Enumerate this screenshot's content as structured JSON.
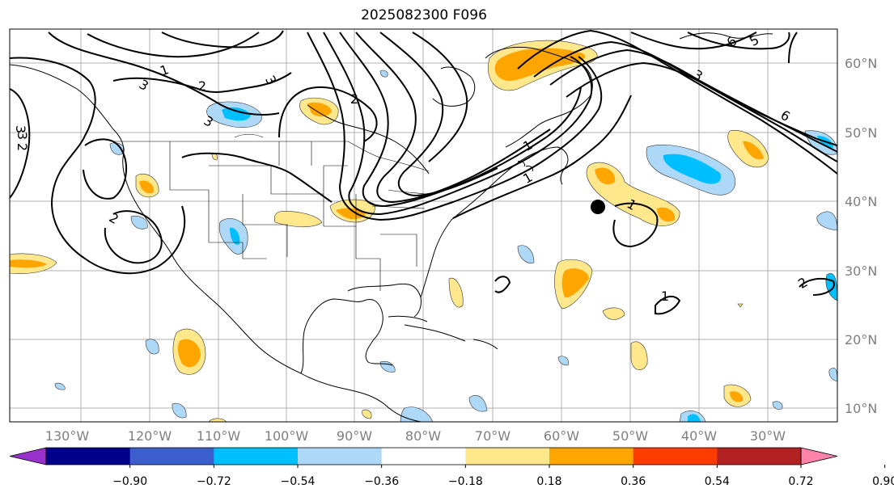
{
  "title": "2025082300 F096",
  "map": {
    "lon_labels": [
      "130°W",
      "120°W",
      "110°W",
      "100°W",
      "90°W",
      "80°W",
      "70°W",
      "60°W",
      "50°W",
      "40°W",
      "30°W"
    ],
    "lat_labels": [
      "60°N",
      "50°N",
      "40°N",
      "30°N",
      "20°N",
      "10°N"
    ]
  },
  "contour_labels": [
    "1",
    "2",
    "3",
    "3",
    "2",
    "3",
    "2",
    "3",
    "2",
    "1",
    "6",
    "5",
    "3",
    "6",
    "1",
    "1",
    "1",
    "2",
    "3"
  ],
  "colorbar": {
    "ticks": [
      "−0.90",
      "−0.72",
      "−0.54",
      "−0.36",
      "−0.18",
      "0.18",
      "0.36",
      "0.54",
      "0.72",
      "0.90"
    ],
    "colors": [
      "#9932cc",
      "#00008b",
      "#3a5fcd",
      "#00bfff",
      "#add8f7",
      "#ffffff",
      "#ffe88c",
      "#ffa500",
      "#ff3c00",
      "#b22222",
      "#ff82ab"
    ]
  },
  "marker": {
    "label": "storm-center",
    "color": "#000000"
  }
}
